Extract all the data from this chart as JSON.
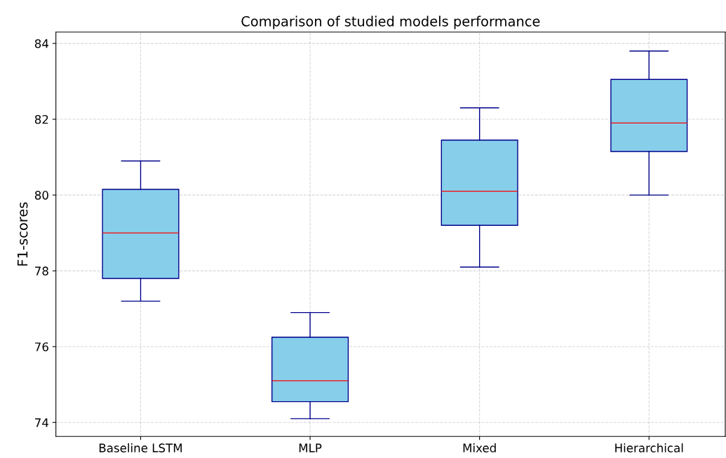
{
  "chart_data": {
    "type": "box",
    "title": "Comparison of studied models performance",
    "ylabel": "F1-scores",
    "categories": [
      "Baseline LSTM",
      "MLP",
      "Mixed",
      "Hierarchical"
    ],
    "boxes": [
      {
        "low": 77.2,
        "q1": 77.8,
        "median": 79.0,
        "q3": 80.15,
        "high": 80.9
      },
      {
        "low": 74.1,
        "q1": 74.55,
        "median": 75.1,
        "q3": 76.25,
        "high": 76.9
      },
      {
        "low": 78.1,
        "q1": 79.2,
        "median": 80.1,
        "q3": 81.45,
        "high": 82.3
      },
      {
        "low": 80.0,
        "q1": 81.15,
        "median": 81.9,
        "q3": 83.05,
        "high": 83.8
      }
    ],
    "color": "#87ceeb",
    "ylim": [
      73.63,
      84.3
    ],
    "yticks": [
      74,
      76,
      78,
      80,
      82,
      84
    ],
    "grid": true,
    "line_style": "dashed"
  }
}
